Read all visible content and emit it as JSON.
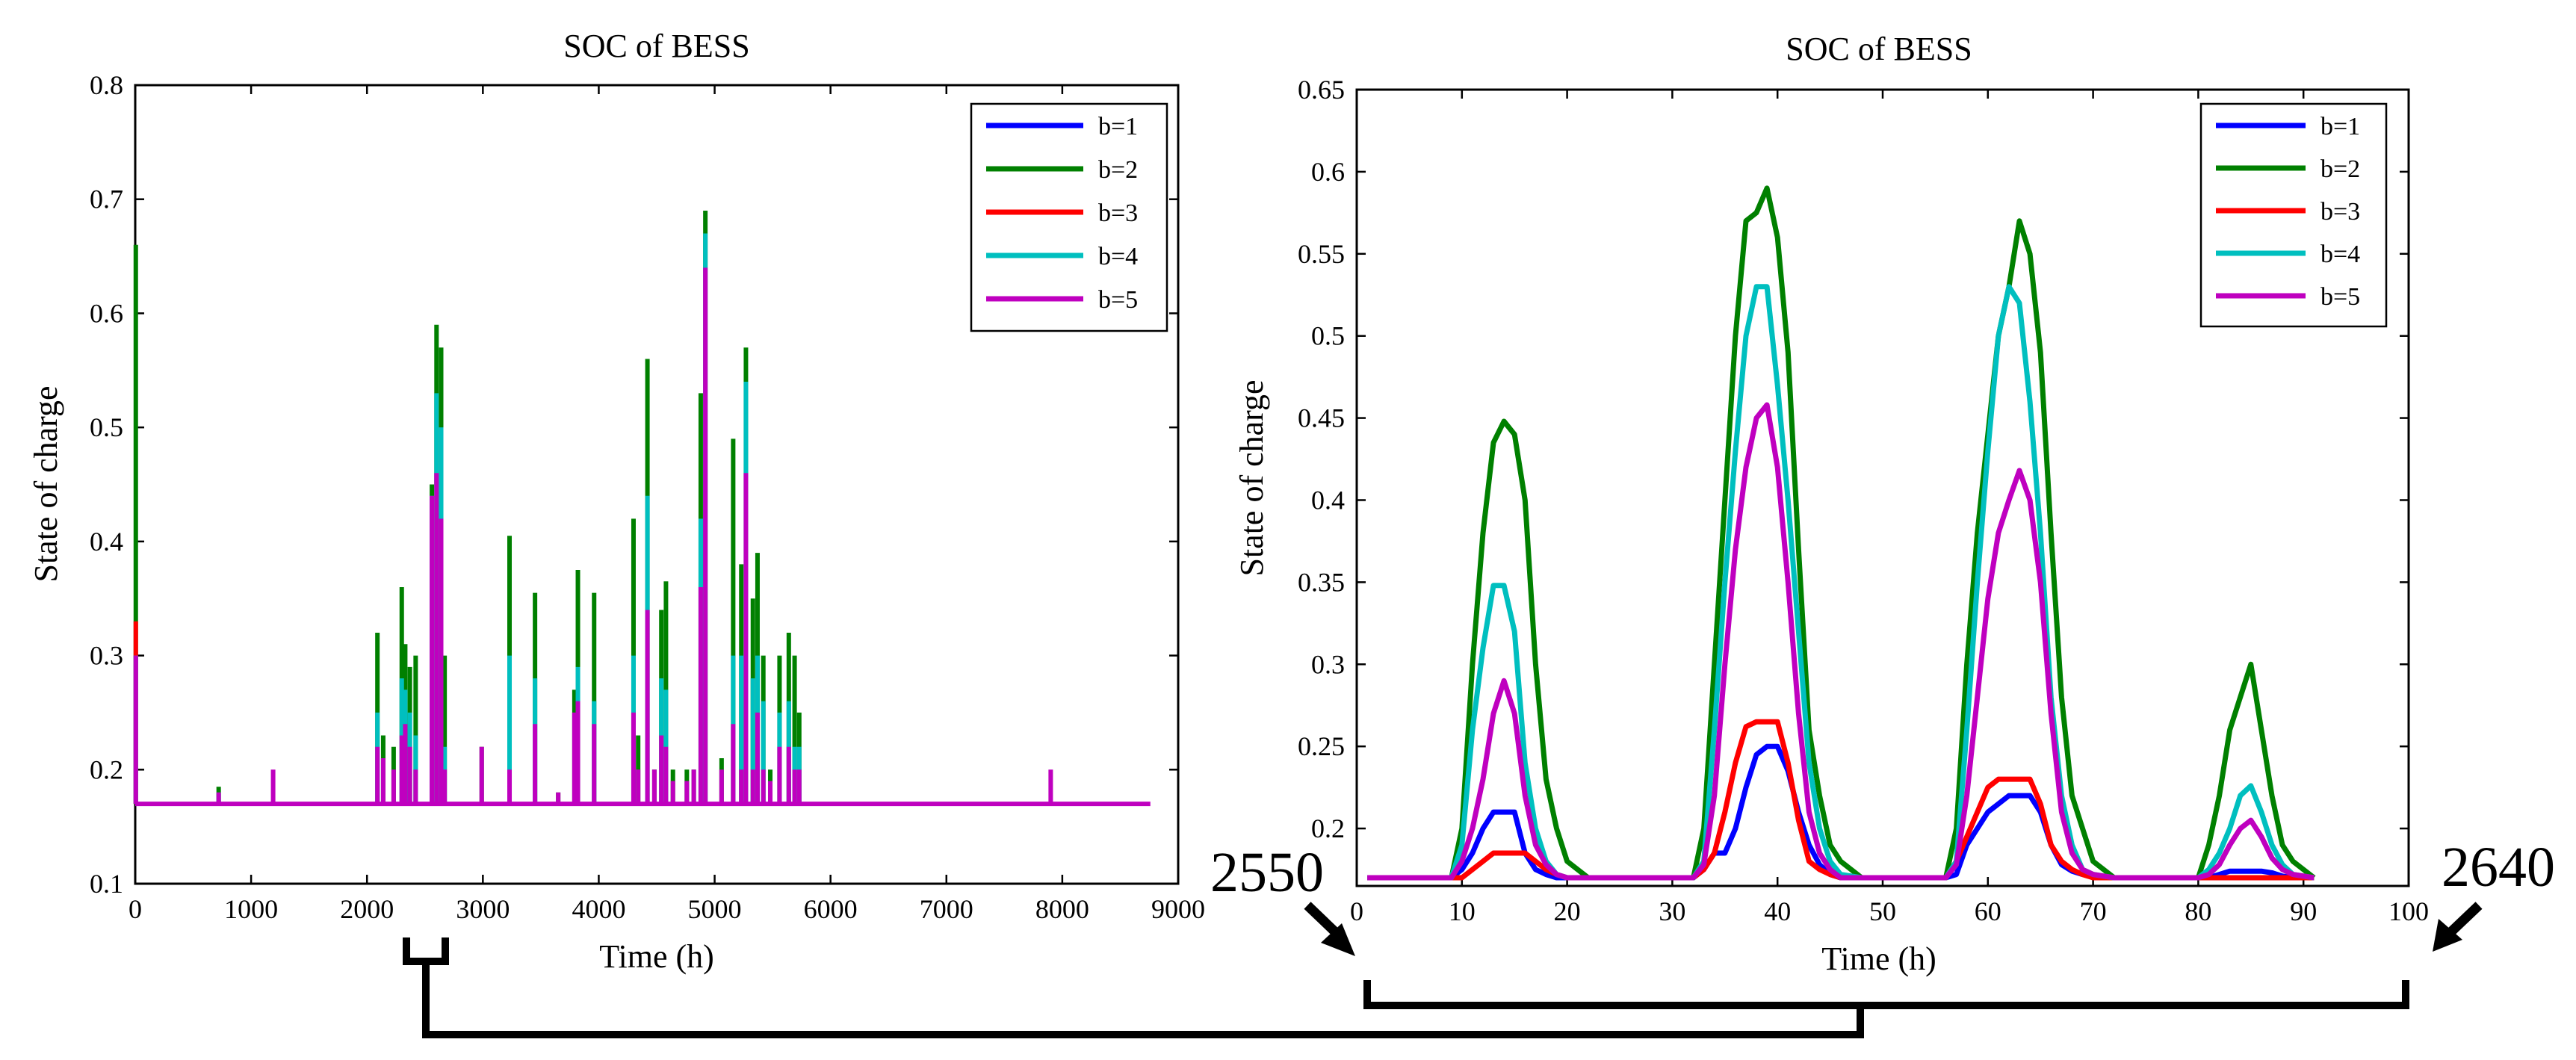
{
  "colors": {
    "b1": "#0000ff",
    "b2": "#008000",
    "b3": "#ff0000",
    "b4": "#00bfbf",
    "b5": "#bf00bf"
  },
  "annotations": {
    "start_hour": "2550",
    "end_hour": "2640"
  },
  "chart_data": [
    {
      "type": "line",
      "title": "SOC of BESS",
      "xlabel": "Time (h)",
      "ylabel": "State of charge",
      "xlim": [
        0,
        9000
      ],
      "ylim": [
        0.1,
        0.8
      ],
      "xticks": [
        0,
        1000,
        2000,
        3000,
        4000,
        5000,
        6000,
        7000,
        8000,
        9000
      ],
      "yticks": [
        0.1,
        0.2,
        0.3,
        0.4,
        0.5,
        0.6,
        0.7,
        0.8
      ],
      "baseline": 0.17,
      "x_end": 8760,
      "legend": [
        "b=1",
        "b=2",
        "b=3",
        "b=4",
        "b=5"
      ],
      "legend_position": "top-right",
      "spikes": [
        {
          "x": 5,
          "b2": 0.66,
          "b3": 0.33,
          "b4": 0.3,
          "b5": 0.3
        },
        {
          "x": 720,
          "b2": 0.185,
          "b4": 0.18,
          "b5": 0.18
        },
        {
          "x": 1190,
          "b5": 0.2
        },
        {
          "x": 2090,
          "b2": 0.32,
          "b4": 0.25,
          "b5": 0.22
        },
        {
          "x": 2140,
          "b2": 0.23,
          "b5": 0.21
        },
        {
          "x": 2230,
          "b2": 0.22,
          "b5": 0.2
        },
        {
          "x": 2300,
          "b2": 0.36,
          "b4": 0.28,
          "b5": 0.23
        },
        {
          "x": 2330,
          "b2": 0.31,
          "b4": 0.27,
          "b5": 0.24
        },
        {
          "x": 2370,
          "b2": 0.29,
          "b4": 0.25,
          "b5": 0.22
        },
        {
          "x": 2420,
          "b2": 0.3,
          "b4": 0.23,
          "b5": 0.2
        },
        {
          "x": 2560,
          "b2": 0.45,
          "b4": 0.44,
          "b5": 0.44
        },
        {
          "x": 2600,
          "b2": 0.59,
          "b4": 0.53,
          "b5": 0.46
        },
        {
          "x": 2640,
          "b2": 0.57,
          "b4": 0.5,
          "b5": 0.42
        },
        {
          "x": 2670,
          "b2": 0.3,
          "b4": 0.22,
          "b5": 0.2
        },
        {
          "x": 2990,
          "b2": 0.22,
          "b5": 0.22
        },
        {
          "x": 3230,
          "b2": 0.405,
          "b4": 0.3,
          "b5": 0.2
        },
        {
          "x": 3450,
          "b2": 0.355,
          "b4": 0.28,
          "b5": 0.24
        },
        {
          "x": 3650,
          "b2": 0.18,
          "b5": 0.18
        },
        {
          "x": 3790,
          "b2": 0.27,
          "b5": 0.25
        },
        {
          "x": 3820,
          "b2": 0.375,
          "b4": 0.29,
          "b5": 0.26
        },
        {
          "x": 3960,
          "b2": 0.355,
          "b4": 0.26,
          "b5": 0.24
        },
        {
          "x": 4300,
          "b2": 0.42,
          "b4": 0.3,
          "b5": 0.25
        },
        {
          "x": 4340,
          "b2": 0.23,
          "b5": 0.2
        },
        {
          "x": 4420,
          "b2": 0.56,
          "b4": 0.44,
          "b5": 0.34
        },
        {
          "x": 4480,
          "b2": 0.2,
          "b5": 0.2
        },
        {
          "x": 4540,
          "b2": 0.34,
          "b4": 0.28,
          "b5": 0.23
        },
        {
          "x": 4580,
          "b2": 0.365,
          "b4": 0.27,
          "b5": 0.22
        },
        {
          "x": 4640,
          "b2": 0.2,
          "b5": 0.19
        },
        {
          "x": 4760,
          "b2": 0.2,
          "b5": 0.19
        },
        {
          "x": 4820,
          "b2": 0.2,
          "b5": 0.2
        },
        {
          "x": 4880,
          "b2": 0.53,
          "b4": 0.42,
          "b5": 0.36
        },
        {
          "x": 4920,
          "b2": 0.69,
          "b4": 0.67,
          "b5": 0.64
        },
        {
          "x": 5060,
          "b2": 0.21,
          "b5": 0.2
        },
        {
          "x": 5160,
          "b2": 0.49,
          "b4": 0.3,
          "b5": 0.24
        },
        {
          "x": 5230,
          "b2": 0.38,
          "b4": 0.3,
          "b5": 0.2
        },
        {
          "x": 5270,
          "b2": 0.57,
          "b4": 0.54,
          "b5": 0.46
        },
        {
          "x": 5330,
          "b2": 0.35,
          "b4": 0.28,
          "b5": 0.2
        },
        {
          "x": 5370,
          "b2": 0.39,
          "b4": 0.3,
          "b5": 0.25
        },
        {
          "x": 5420,
          "b2": 0.3,
          "b4": 0.26,
          "b5": 0.2
        },
        {
          "x": 5480,
          "b2": 0.2,
          "b5": 0.19
        },
        {
          "x": 5560,
          "b2": 0.3,
          "b4": 0.25,
          "b5": 0.22
        },
        {
          "x": 5640,
          "b2": 0.32,
          "b4": 0.26,
          "b5": 0.22
        },
        {
          "x": 5690,
          "b2": 0.3,
          "b4": 0.22,
          "b5": 0.2
        },
        {
          "x": 5730,
          "b2": 0.25,
          "b4": 0.22,
          "b5": 0.2
        },
        {
          "x": 7900,
          "b5": 0.2
        }
      ]
    },
    {
      "type": "line",
      "title": "SOC of BESS",
      "xlabel": "Time (h)",
      "ylabel": "State of charge",
      "xlim": [
        0,
        100
      ],
      "ylim": [
        0.165,
        0.65
      ],
      "xticks": [
        0,
        10,
        20,
        30,
        40,
        50,
        60,
        70,
        80,
        90,
        100
      ],
      "yticks": [
        0.2,
        0.25,
        0.3,
        0.35,
        0.4,
        0.45,
        0.5,
        0.55,
        0.6,
        0.65
      ],
      "legend": [
        "b=1",
        "b=2",
        "b=3",
        "b=4",
        "b=5"
      ],
      "legend_position": "top-right",
      "x": [
        1,
        9,
        10,
        11,
        12,
        13,
        14,
        15,
        16,
        17,
        18,
        19,
        20,
        22,
        32,
        33,
        34,
        35,
        36,
        37,
        38,
        39,
        40,
        41,
        42,
        43,
        44,
        45,
        46,
        48,
        56,
        57,
        58,
        59,
        60,
        61,
        62,
        63,
        64,
        65,
        66,
        67,
        68,
        69,
        70,
        72,
        80,
        81,
        82,
        83,
        84,
        85,
        86,
        87,
        88,
        89,
        91
      ],
      "series": [
        {
          "name": "b=1",
          "values": [
            0.17,
            0.17,
            0.175,
            0.185,
            0.2,
            0.21,
            0.21,
            0.21,
            0.185,
            0.175,
            0.172,
            0.17,
            0.17,
            0.17,
            0.17,
            0.175,
            0.185,
            0.185,
            0.2,
            0.225,
            0.245,
            0.25,
            0.25,
            0.235,
            0.21,
            0.19,
            0.178,
            0.172,
            0.17,
            0.17,
            0.17,
            0.172,
            0.19,
            0.2,
            0.21,
            0.215,
            0.22,
            0.22,
            0.22,
            0.21,
            0.19,
            0.178,
            0.174,
            0.172,
            0.171,
            0.17,
            0.17,
            0.17,
            0.172,
            0.174,
            0.174,
            0.174,
            0.174,
            0.173,
            0.171,
            0.17,
            0.17
          ]
        },
        {
          "name": "b=2",
          "values": [
            0.17,
            0.17,
            0.2,
            0.3,
            0.38,
            0.435,
            0.448,
            0.44,
            0.4,
            0.3,
            0.23,
            0.2,
            0.18,
            0.17,
            0.17,
            0.2,
            0.3,
            0.4,
            0.5,
            0.57,
            0.575,
            0.59,
            0.56,
            0.49,
            0.37,
            0.26,
            0.22,
            0.19,
            0.18,
            0.17,
            0.17,
            0.2,
            0.3,
            0.38,
            0.44,
            0.5,
            0.53,
            0.57,
            0.55,
            0.49,
            0.38,
            0.28,
            0.22,
            0.2,
            0.18,
            0.17,
            0.17,
            0.19,
            0.22,
            0.26,
            0.28,
            0.3,
            0.26,
            0.22,
            0.19,
            0.18,
            0.17
          ]
        },
        {
          "name": "b=3",
          "values": [
            0.17,
            0.17,
            0.17,
            0.175,
            0.18,
            0.185,
            0.185,
            0.185,
            0.185,
            0.18,
            0.175,
            0.172,
            0.17,
            0.17,
            0.17,
            0.175,
            0.185,
            0.21,
            0.24,
            0.262,
            0.265,
            0.265,
            0.265,
            0.24,
            0.205,
            0.18,
            0.175,
            0.172,
            0.17,
            0.17,
            0.17,
            0.18,
            0.195,
            0.21,
            0.225,
            0.23,
            0.23,
            0.23,
            0.23,
            0.215,
            0.19,
            0.18,
            0.175,
            0.172,
            0.17,
            0.17,
            0.17,
            0.17,
            0.17,
            0.17,
            0.17,
            0.17,
            0.17,
            0.17,
            0.17,
            0.17,
            0.17
          ]
        },
        {
          "name": "b=4",
          "values": [
            0.17,
            0.17,
            0.19,
            0.26,
            0.31,
            0.348,
            0.348,
            0.32,
            0.24,
            0.2,
            0.18,
            0.172,
            0.17,
            0.17,
            0.17,
            0.18,
            0.26,
            0.35,
            0.43,
            0.5,
            0.53,
            0.53,
            0.47,
            0.4,
            0.32,
            0.24,
            0.2,
            0.18,
            0.172,
            0.17,
            0.17,
            0.18,
            0.26,
            0.35,
            0.43,
            0.5,
            0.53,
            0.52,
            0.46,
            0.38,
            0.28,
            0.22,
            0.19,
            0.175,
            0.172,
            0.17,
            0.17,
            0.175,
            0.185,
            0.2,
            0.22,
            0.226,
            0.21,
            0.19,
            0.178,
            0.172,
            0.17
          ]
        },
        {
          "name": "b=5",
          "values": [
            0.17,
            0.17,
            0.18,
            0.2,
            0.23,
            0.27,
            0.29,
            0.27,
            0.22,
            0.19,
            0.178,
            0.172,
            0.17,
            0.17,
            0.17,
            0.178,
            0.22,
            0.3,
            0.37,
            0.42,
            0.45,
            0.458,
            0.42,
            0.35,
            0.27,
            0.21,
            0.185,
            0.175,
            0.17,
            0.17,
            0.17,
            0.178,
            0.22,
            0.28,
            0.34,
            0.38,
            0.4,
            0.418,
            0.4,
            0.35,
            0.27,
            0.21,
            0.185,
            0.175,
            0.172,
            0.17,
            0.17,
            0.172,
            0.178,
            0.19,
            0.2,
            0.205,
            0.195,
            0.182,
            0.175,
            0.172,
            0.17
          ]
        }
      ]
    }
  ]
}
